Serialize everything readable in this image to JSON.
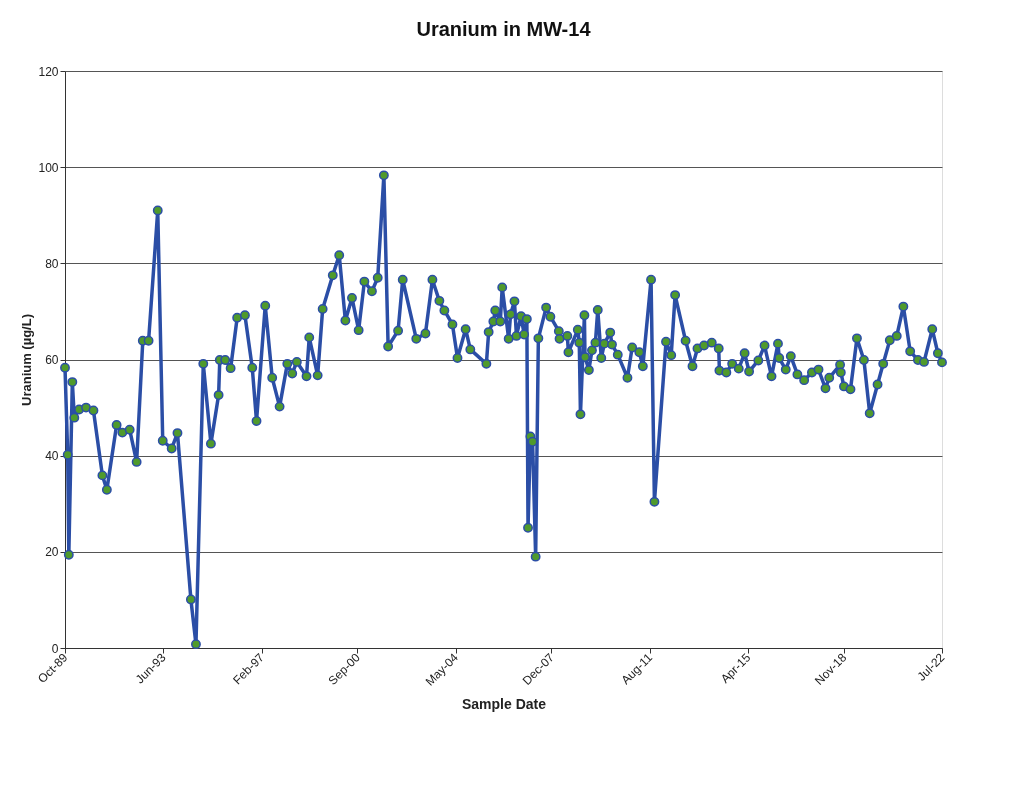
{
  "chart_data": {
    "type": "line",
    "title": "Uranium in MW-14",
    "xlabel": "Sample Date",
    "ylabel": "Uranium (µg/L)",
    "x": [
      "1989-10-01",
      "1989-11-07",
      "1989-11-22",
      "1990-01-09",
      "1990-02-05",
      "1990-04-12",
      "1990-07-15",
      "1990-10-24",
      "1991-02-23",
      "1991-04-25",
      "1991-09-05",
      "1991-11-22",
      "1992-03-01",
      "1992-06-04",
      "1992-08-27",
      "1992-11-14",
      "1993-03-19",
      "1993-05-26",
      "1993-09-25",
      "1993-12-13",
      "1994-06-14",
      "1994-08-22",
      "1994-11-30",
      "1995-03-14",
      "1995-06-27",
      "1995-07-13",
      "1995-09-25",
      "1995-12-08",
      "1996-03-06",
      "1996-06-20",
      "1996-09-28",
      "1996-11-25",
      "1997-03-24",
      "1997-06-27",
      "1997-10-06",
      "1998-01-19",
      "1998-03-27",
      "1998-05-29",
      "1998-10-08",
      "1998-11-14",
      "1999-03-09",
      "1999-05-16",
      "1999-10-01",
      "1999-12-28",
      "2000-03-21",
      "2000-06-19",
      "2000-09-18",
      "2000-12-05",
      "2001-03-18",
      "2001-06-05",
      "2001-08-28",
      "2001-10-25",
      "2002-03-10",
      "2002-05-12",
      "2002-11-13",
      "2003-03-18",
      "2003-06-21",
      "2003-09-24",
      "2003-12-01",
      "2004-03-20",
      "2004-05-28",
      "2004-09-16",
      "2004-11-19",
      "2005-06-26",
      "2005-07-27",
      "2005-09-29",
      "2005-10-25",
      "2006-01-02",
      "2006-01-28",
      "2006-04-26",
      "2006-05-22",
      "2006-07-14",
      "2006-08-10",
      "2006-10-12",
      "2006-11-23",
      "2006-12-30",
      "2007-01-15",
      "2007-02-16",
      "2007-03-18",
      "2007-04-29",
      "2007-06-05",
      "2007-09-19",
      "2007-11-16",
      "2008-03-10",
      "2008-03-20",
      "2008-07-04",
      "2008-07-19",
      "2008-11-24",
      "2008-12-14",
      "2008-12-30",
      "2009-02-22",
      "2009-03-02",
      "2009-04-24",
      "2009-06-05",
      "2009-07-22",
      "2009-08-23",
      "2009-10-10",
      "2009-11-21",
      "2010-02-09",
      "2010-03-05",
      "2010-05-23",
      "2010-10-02",
      "2010-12-05",
      "2011-03-13",
      "2011-04-30",
      "2011-08-20",
      "2011-10-05",
      "2012-03-11",
      "2012-05-21",
      "2012-07-13",
      "2012-12-03",
      "2013-03-07",
      "2013-05-14",
      "2013-08-12",
      "2013-11-25",
      "2014-02-28",
      "2014-03-09",
      "2014-06-12",
      "2014-08-30",
      "2014-11-28",
      "2015-02-16",
      "2015-04-18",
      "2015-08-22",
      "2015-11-15",
      "2016-02-18",
      "2016-05-16",
      "2016-06-02",
      "2016-08-30",
      "2016-11-07",
      "2017-02-05",
      "2017-05-08",
      "2017-08-22",
      "2017-11-20",
      "2018-02-23",
      "2018-04-15",
      "2018-09-10",
      "2018-09-20",
      "2018-11-02",
      "2019-01-30",
      "2019-04-28",
      "2019-08-01",
      "2019-10-19",
      "2020-02-03",
      "2020-04-20",
      "2020-07-19",
      "2020-10-22",
      "2021-01-20",
      "2021-04-23",
      "2021-08-07",
      "2021-10-29",
      "2022-02-18",
      "2022-05-06",
      "2022-07-01"
    ],
    "series": [
      {
        "color": "#2b4ea6",
        "values": [
          58.3,
          40.2,
          19.4,
          55.3,
          47.9,
          49.6,
          50.0,
          49.4,
          35.9,
          32.9,
          46.4,
          44.8,
          45.4,
          38.7,
          63.9,
          63.9,
          91.0,
          43.1,
          41.5,
          44.7,
          10.1,
          0.8,
          59.1,
          42.5,
          52.6,
          59.9,
          59.9,
          58.2,
          68.7,
          69.2,
          58.3,
          47.2,
          71.2,
          56.2,
          50.2,
          59.1,
          57.1,
          59.5,
          56.5,
          64.6,
          56.7,
          70.5,
          77.5,
          81.7,
          68.1,
          72.8,
          66.1,
          76.2,
          74.2,
          77.0,
          98.3,
          62.7,
          66.0,
          76.6,
          64.3,
          65.4,
          76.6,
          72.2,
          70.2,
          67.3,
          60.3,
          66.3,
          62.1,
          59.1,
          65.7,
          67.9,
          70.2,
          67.9,
          75.0,
          64.3,
          69.4,
          72.1,
          64.9,
          69.0,
          65.2,
          68.4,
          25.0,
          44.0,
          42.9,
          19.0,
          64.4,
          70.8,
          68.9,
          65.9,
          64.3,
          64.9,
          61.5,
          66.2,
          63.5,
          48.6,
          69.2,
          60.5,
          57.8,
          61.9,
          63.5,
          70.3,
          60.3,
          63.3,
          65.6,
          63.1,
          61.0,
          56.2,
          62.5,
          61.5,
          58.6,
          76.6,
          30.4,
          63.7,
          60.9,
          73.4,
          63.9,
          58.6,
          62.3,
          62.9,
          63.5,
          62.3,
          57.7,
          57.3,
          59.1,
          58.1,
          61.3,
          57.5,
          59.8,
          62.9,
          56.5,
          63.3,
          60.3,
          57.9,
          60.7,
          56.9,
          55.7,
          57.3,
          57.9,
          54.0,
          56.2,
          58.9,
          57.3,
          54.4,
          53.8,
          64.4,
          59.9,
          48.8,
          54.8,
          59.1,
          64.0,
          64.9,
          71.0,
          61.7,
          59.9,
          59.5,
          66.3,
          61.3,
          59.4
        ]
      }
    ],
    "xlim": [
      "1989-10-01",
      "2022-07-01"
    ],
    "xticks": [
      {
        "value": "1989-10-01",
        "label": "Oct-89"
      },
      {
        "value": "1993-06-01",
        "label": "Jun-93"
      },
      {
        "value": "1997-02-01",
        "label": "Feb-97"
      },
      {
        "value": "2000-09-01",
        "label": "Sep-00"
      },
      {
        "value": "2004-05-01",
        "label": "May-04"
      },
      {
        "value": "2007-12-01",
        "label": "Dec-07"
      },
      {
        "value": "2011-08-01",
        "label": "Aug-11"
      },
      {
        "value": "2015-04-01",
        "label": "Apr-15"
      },
      {
        "value": "2018-11-01",
        "label": "Nov-18"
      },
      {
        "value": "2022-07-01",
        "label": "Jul-22"
      }
    ],
    "ylim": [
      0,
      120
    ],
    "yticks": [
      0,
      20,
      40,
      60,
      80,
      100,
      120
    ],
    "grid": "y",
    "marker": "circle",
    "line_style": "solid"
  }
}
